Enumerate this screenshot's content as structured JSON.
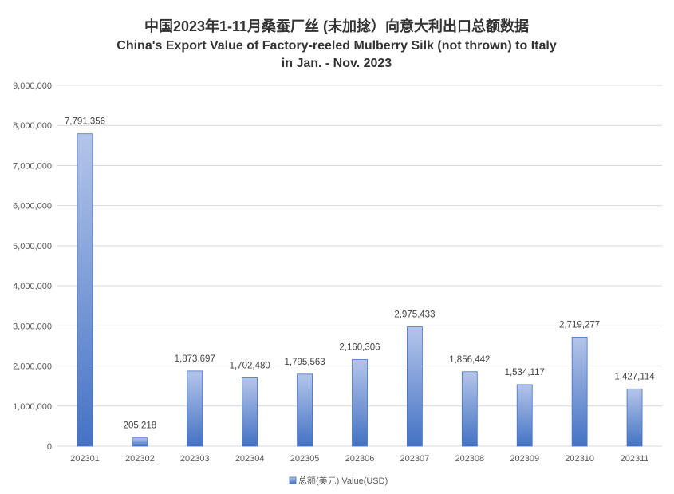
{
  "chart_data": {
    "type": "bar",
    "title": "中国2023年1-11月桑蚕厂丝 (未加捻）向意大利出口总额数据",
    "subtitle_line1": "China's Export Value of Factory-reeled Mulberry Silk (not thrown) to Italy",
    "subtitle_line2": "in Jan. - Nov. 2023",
    "categories": [
      "202301",
      "202302",
      "202303",
      "202304",
      "202305",
      "202306",
      "202307",
      "202308",
      "202309",
      "202310",
      "202311"
    ],
    "series": [
      {
        "name": "总额(美元) Value(USD)",
        "values": [
          7791356,
          205218,
          1873697,
          1702480,
          1795563,
          2160306,
          2975433,
          1856442,
          1534117,
          2719277,
          1427114
        ]
      }
    ],
    "data_labels": [
      "7,791,356",
      "205,218",
      "1,873,697",
      "1,702,480",
      "1,795,563",
      "2,160,306",
      "2,975,433",
      "1,856,442",
      "1,534,117",
      "2,719,277",
      "1,427,114"
    ],
    "y_ticks": [
      "0",
      "1,000,000",
      "2,000,000",
      "3,000,000",
      "4,000,000",
      "5,000,000",
      "6,000,000",
      "7,000,000",
      "8,000,000",
      "9,000,000"
    ],
    "ylim": [
      0,
      9000000
    ],
    "xlabel": "",
    "ylabel": "",
    "grid": true,
    "legend_position": "bottom",
    "colors": {
      "bar_top": "#b4c5ea",
      "bar_bottom": "#4472c4",
      "bar_stroke": "#4472c4",
      "grid": "#d9d9d9"
    }
  }
}
